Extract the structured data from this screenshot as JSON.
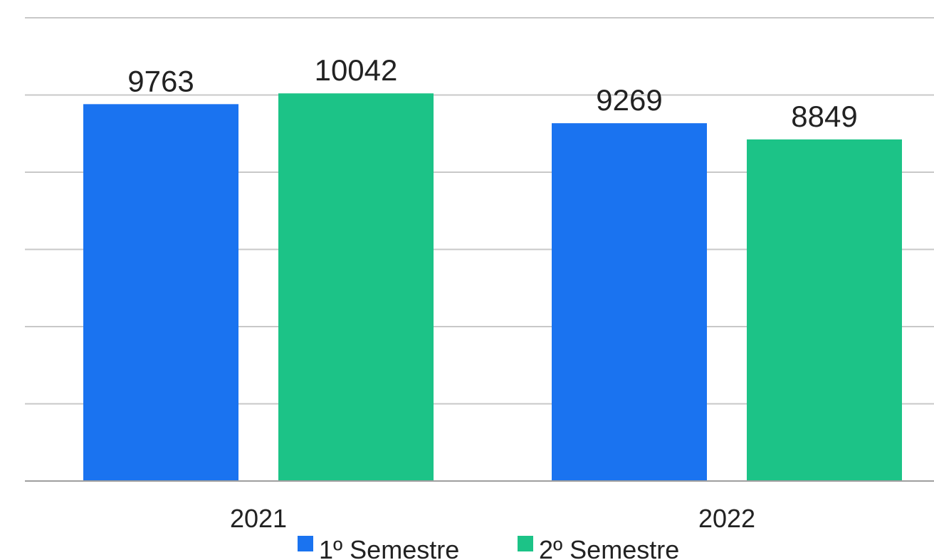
{
  "chart_data": {
    "type": "bar",
    "categories": [
      "2021",
      "2022"
    ],
    "series": [
      {
        "name": "1º Semestre",
        "values": [
          9763,
          9269
        ],
        "color": "#1a73f0"
      },
      {
        "name": "2º Semestre",
        "values": [
          10042,
          8849
        ],
        "color": "#1cc387"
      }
    ],
    "ylim": [
      0,
      12000
    ],
    "grid": true,
    "legend_position": "bottom",
    "data_labels": true
  }
}
